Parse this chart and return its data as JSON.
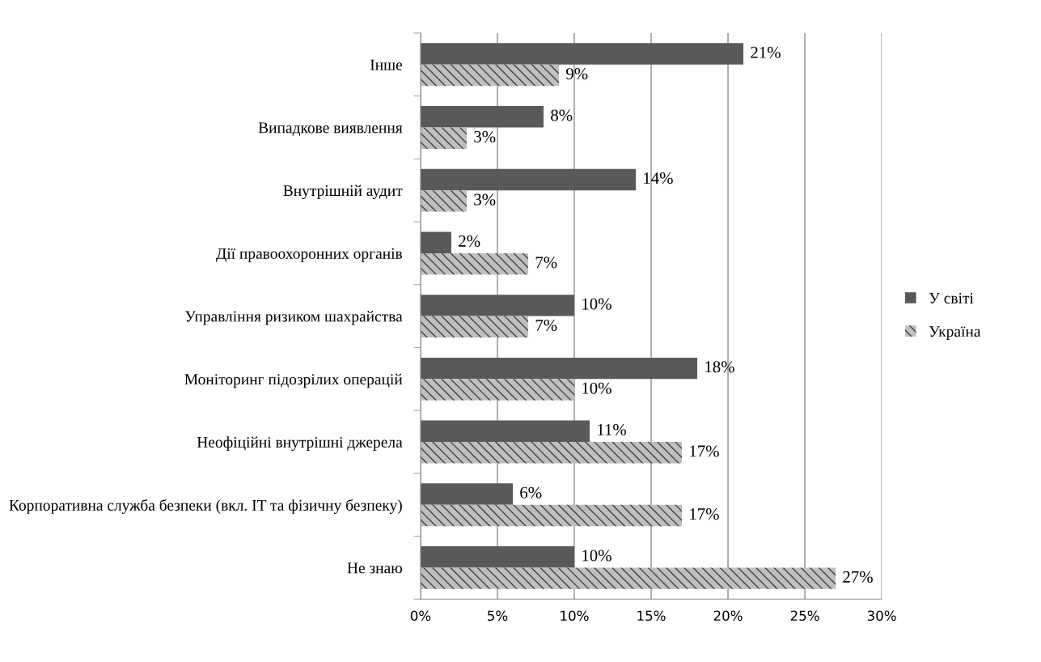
{
  "chart_data": {
    "type": "bar",
    "orientation": "horizontal",
    "categories": [
      "Інше",
      "Випадкове виявлення",
      "Внутрішній аудит",
      "Дії правоохоронних органів",
      "Управління ризиком шахрайства",
      "Моніторинг підозрілих операцій",
      "Неофіційні внутрішні джерела",
      "Корпоративна служба безпеки (вкл. IT та фізичну безпеку)",
      "Не знаю"
    ],
    "series": [
      {
        "name": "У світі",
        "color": "#595959",
        "values": [
          21,
          8,
          14,
          2,
          10,
          18,
          11,
          6,
          10
        ],
        "value_labels": [
          "21%",
          "8%",
          "14%",
          "2%",
          "10%",
          "18%",
          "11%",
          "6%",
          "10%"
        ]
      },
      {
        "name": "Україна",
        "color": "#bfbfbf",
        "values": [
          9,
          3,
          3,
          7,
          7,
          10,
          17,
          17,
          27
        ],
        "value_labels": [
          "9%",
          "3%",
          "3%",
          "7%",
          "7%",
          "10%",
          "17%",
          "17%",
          "27%"
        ]
      }
    ],
    "xlim": [
      0,
      30
    ],
    "xticks": [
      {
        "value": 0,
        "label": "0%"
      },
      {
        "value": 5,
        "label": "5%"
      },
      {
        "value": 10,
        "label": "10%"
      },
      {
        "value": 15,
        "label": "15%"
      },
      {
        "value": 20,
        "label": "20%"
      },
      {
        "value": 25,
        "label": "25%"
      },
      {
        "value": 30,
        "label": "30%"
      }
    ],
    "grid": "x",
    "legend": "right"
  }
}
